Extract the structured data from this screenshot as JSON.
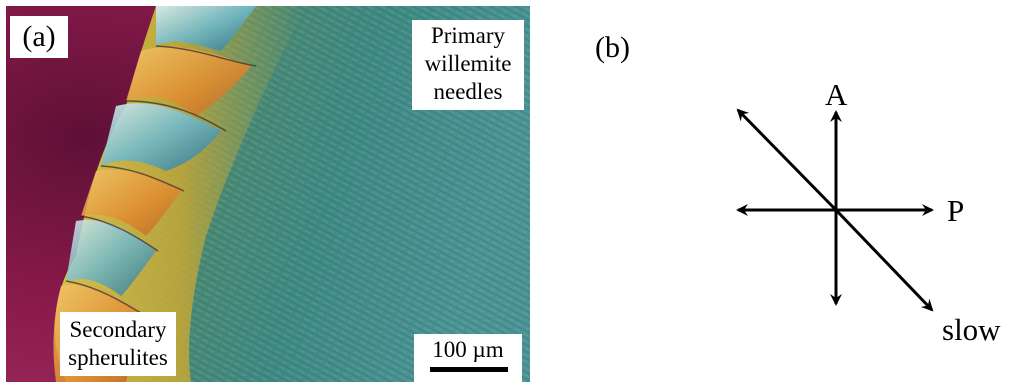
{
  "panel_a": {
    "label": "(a)",
    "primary_label_lines": [
      "Primary",
      "willemite",
      "needles"
    ],
    "secondary_label_lines": [
      "Secondary",
      "spherulites"
    ],
    "scale_bar_label": "100 µm"
  },
  "panel_b": {
    "label": "(b)",
    "analyzer_label": "A",
    "polarizer_label": "P",
    "slow_label": "slow"
  },
  "colors": {
    "background": "#ffffff",
    "matrix_magenta": "#8a1a4c",
    "needle_teal": "#3f8a84",
    "yellow_band": "#d8b93a",
    "arrow": "#000000"
  }
}
